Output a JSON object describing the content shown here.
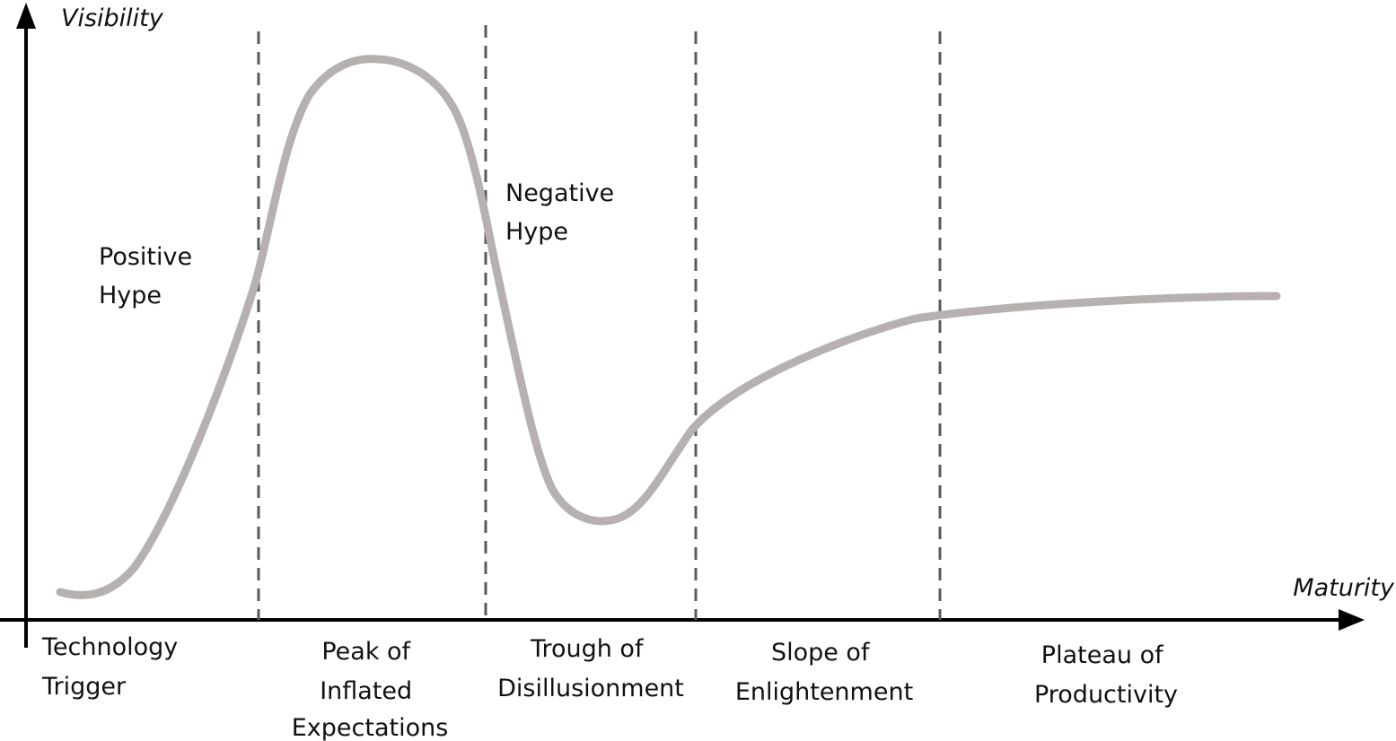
{
  "axes": {
    "y_label": "Visibility",
    "x_label": "Maturity"
  },
  "annotations": {
    "positive_hype": [
      "Positive",
      "Hype"
    ],
    "negative_hype": [
      "Negative",
      "Hype"
    ]
  },
  "phases": [
    {
      "id": "technology-trigger",
      "lines": [
        "Technology",
        "Trigger"
      ]
    },
    {
      "id": "peak-of-inflated-expectations",
      "lines": [
        "Peak of",
        "Inflated",
        "Expectations"
      ]
    },
    {
      "id": "trough-of-disillusionment",
      "lines": [
        "Trough of",
        "Disillusionment"
      ]
    },
    {
      "id": "slope-of-enlightenment",
      "lines": [
        "Slope of",
        "Enlightenment"
      ]
    },
    {
      "id": "plateau-of-productivity",
      "lines": [
        "Plateau of",
        "Productivity"
      ]
    }
  ],
  "colors": {
    "curve": "#b5b1b1",
    "axis": "#000000",
    "divider": "#5a5a5a",
    "text": "#111111"
  }
}
